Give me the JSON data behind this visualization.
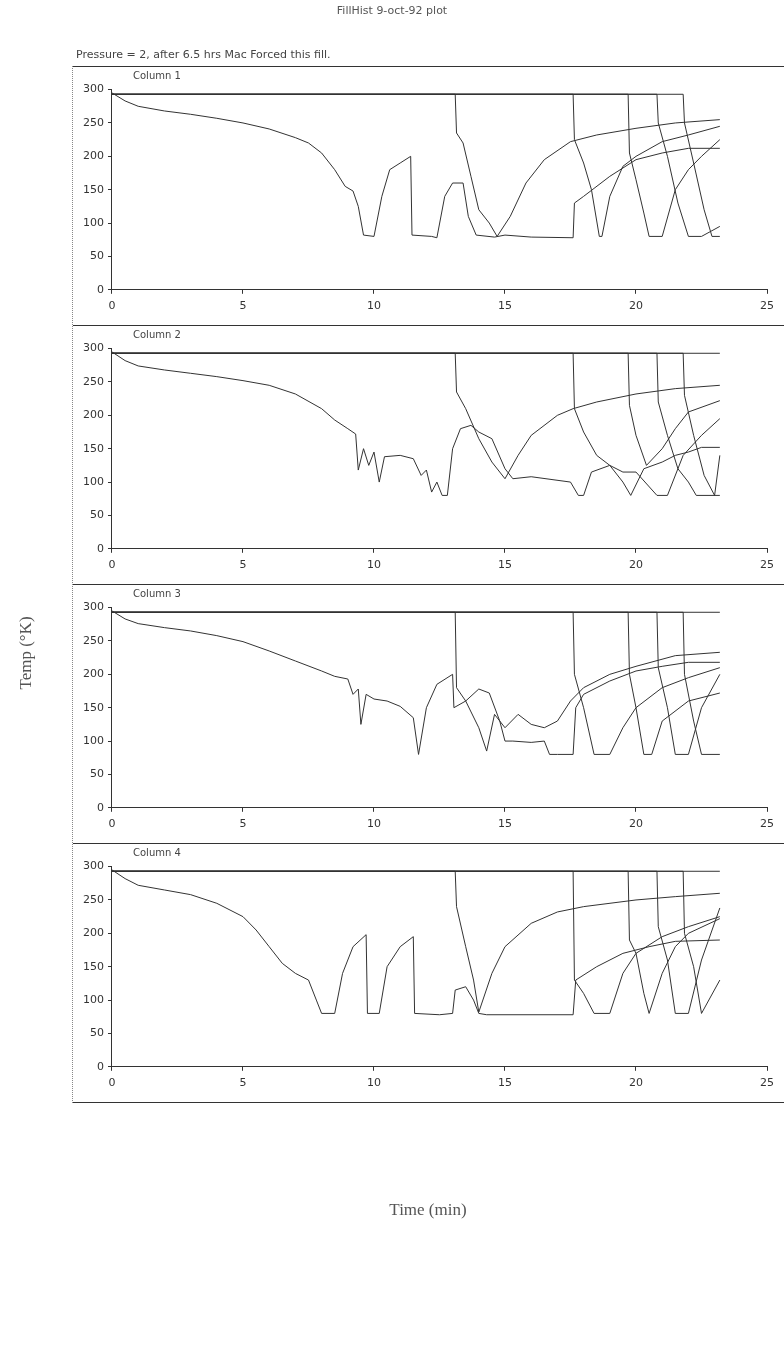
{
  "chart_data": [
    {
      "type": "line",
      "title": "Column 1",
      "annotations": [
        "FillHist 9-oct-92 plot",
        "Pressure = 2, after 6.5 hrs Mac Forced this fill."
      ],
      "xlim": [
        0,
        25
      ],
      "xticks": [
        0,
        5,
        10,
        15,
        20,
        25
      ],
      "ylim": [
        0,
        300
      ],
      "yticks": [
        0,
        50,
        100,
        150,
        200,
        250,
        300
      ],
      "grid": false,
      "legend": false,
      "marker": "none",
      "line_style": "solid",
      "series": [
        {
          "color": "#333333",
          "x": [
            0,
            0.5,
            1,
            2,
            3,
            4,
            5,
            6,
            7,
            7.5,
            8,
            8.5,
            8.9,
            9.2,
            9.4,
            9.6,
            10,
            10.3,
            10.6,
            11,
            11.4,
            11.45,
            12.2,
            12.4,
            12.7,
            13,
            13.4,
            13.6,
            13.9,
            14.6,
            15,
            16,
            17.6,
            17.65,
            18,
            19,
            20,
            21,
            22,
            23.2
          ],
          "values": [
            295,
            283,
            275,
            268,
            263,
            257,
            250,
            241,
            228,
            220,
            205,
            180,
            155,
            148,
            125,
            82,
            80,
            140,
            180,
            190,
            200,
            82,
            80,
            78,
            140,
            160,
            160,
            110,
            82,
            79,
            82,
            79,
            78,
            130,
            140,
            170,
            195,
            205,
            212,
            212
          ]
        },
        {
          "color": "#333333",
          "x": [
            0,
            13.1,
            13.15,
            13.4,
            13.7,
            14,
            14.4,
            14.7,
            15.2,
            15.8,
            16.5,
            17.5,
            18.5,
            20,
            21.5,
            23.2
          ],
          "values": [
            293,
            293,
            235,
            220,
            170,
            120,
            100,
            80,
            110,
            160,
            195,
            222,
            232,
            242,
            250,
            255
          ]
        },
        {
          "color": "#333333",
          "x": [
            0,
            17.6,
            17.65,
            18,
            18.3,
            18.6,
            18.7,
            19,
            19.5,
            20,
            21,
            22,
            23.2
          ],
          "values": [
            293,
            293,
            225,
            190,
            150,
            80,
            80,
            140,
            185,
            200,
            222,
            232,
            245
          ]
        },
        {
          "color": "#333333",
          "x": [
            0,
            19.7,
            19.75,
            20,
            20.3,
            20.5,
            21,
            21.5,
            22,
            22.5,
            23.2
          ],
          "values": [
            293,
            293,
            205,
            165,
            115,
            80,
            80,
            150,
            180,
            200,
            225
          ]
        },
        {
          "color": "#333333",
          "x": [
            0,
            20.8,
            20.85,
            21.2,
            21.6,
            22,
            22.5,
            23.2
          ],
          "values": [
            293,
            293,
            250,
            200,
            130,
            80,
            80,
            95
          ]
        },
        {
          "color": "#333333",
          "x": [
            0,
            21.8,
            21.85,
            22.2,
            22.6,
            22.9,
            23.2
          ],
          "values": [
            293,
            293,
            250,
            190,
            120,
            80,
            80
          ]
        }
      ]
    },
    {
      "type": "line",
      "title": "Column 2",
      "xlim": [
        0,
        25
      ],
      "xticks": [
        0,
        5,
        10,
        15,
        20,
        25
      ],
      "ylim": [
        0,
        300
      ],
      "yticks": [
        0,
        50,
        100,
        150,
        200,
        250,
        300
      ],
      "grid": false,
      "legend": false,
      "marker": "none",
      "line_style": "solid",
      "series": [
        {
          "color": "#333333",
          "x": [
            0,
            0.5,
            1,
            2,
            3,
            4,
            5,
            6,
            7,
            8,
            8.5,
            9,
            9.3,
            9.4,
            9.6,
            9.8,
            10,
            10.2,
            10.4,
            11,
            11.5,
            11.8,
            12,
            12.2,
            12.4,
            12.6,
            12.8,
            13,
            13.3,
            13.7,
            14,
            14.5,
            15,
            15.3,
            16,
            17.5,
            17.8,
            18,
            18.3,
            19,
            19.5,
            19.8,
            20.3,
            21,
            21.5,
            22,
            22.5,
            23.2
          ],
          "values": [
            295,
            282,
            274,
            268,
            263,
            258,
            252,
            245,
            232,
            210,
            193,
            180,
            172,
            118,
            150,
            125,
            145,
            100,
            138,
            140,
            135,
            110,
            118,
            85,
            100,
            80,
            80,
            150,
            180,
            185,
            175,
            165,
            120,
            105,
            108,
            100,
            80,
            80,
            115,
            125,
            100,
            80,
            120,
            130,
            140,
            145,
            152,
            152
          ]
        },
        {
          "color": "#333333",
          "x": [
            0,
            13.1,
            13.15,
            13.5,
            14,
            14.5,
            15,
            15.5,
            16,
            17,
            17.6,
            18.5,
            20,
            21.5,
            23.2
          ],
          "values": [
            293,
            293,
            235,
            210,
            165,
            130,
            105,
            140,
            170,
            200,
            210,
            220,
            232,
            240,
            245
          ]
        },
        {
          "color": "#333333",
          "x": [
            0,
            17.6,
            17.65,
            18,
            18.5,
            19,
            19.5,
            20,
            20.8,
            21.2,
            21.8,
            22.5,
            23.2
          ],
          "values": [
            293,
            293,
            210,
            175,
            140,
            125,
            115,
            115,
            80,
            80,
            140,
            170,
            195
          ]
        },
        {
          "color": "#333333",
          "x": [
            0,
            19.7,
            19.75,
            20,
            20.4,
            21,
            21.5,
            22,
            23.2
          ],
          "values": [
            293,
            293,
            215,
            170,
            125,
            150,
            180,
            205,
            222
          ]
        },
        {
          "color": "#333333",
          "x": [
            0,
            20.8,
            20.85,
            21.2,
            21.6,
            22,
            22.3,
            23.2
          ],
          "values": [
            293,
            293,
            220,
            170,
            120,
            100,
            80,
            80
          ]
        },
        {
          "color": "#333333",
          "x": [
            0,
            21.8,
            21.85,
            22.2,
            22.6,
            23,
            23.2
          ],
          "values": [
            293,
            293,
            230,
            170,
            110,
            80,
            140
          ]
        },
        {
          "color": "#333333",
          "x": [
            0,
            23.2
          ],
          "values": [
            293,
            293
          ]
        }
      ]
    },
    {
      "type": "line",
      "title": "Column 3",
      "ylabel": "Temp (°K)",
      "xlim": [
        0,
        25
      ],
      "xticks": [
        0,
        5,
        10,
        15,
        20,
        25
      ],
      "ylim": [
        0,
        300
      ],
      "yticks": [
        0,
        50,
        100,
        150,
        200,
        250,
        300
      ],
      "grid": false,
      "legend": false,
      "marker": "none",
      "line_style": "solid",
      "series": [
        {
          "color": "#333333",
          "x": [
            0,
            0.5,
            1,
            2,
            3,
            4,
            5,
            6,
            7,
            8,
            8.5,
            9,
            9.2,
            9.4,
            9.5,
            9.7,
            10,
            10.5,
            11,
            11.5,
            11.7,
            12,
            12.4,
            13,
            13.05,
            13.5,
            14,
            14.4,
            14.8,
            15,
            15.3,
            16,
            16.5,
            16.7,
            17,
            17.6,
            17.7,
            18,
            19,
            20,
            21,
            22,
            23.2
          ],
          "values": [
            295,
            283,
            276,
            270,
            265,
            258,
            249,
            235,
            220,
            205,
            197,
            193,
            170,
            178,
            125,
            170,
            163,
            160,
            152,
            135,
            80,
            150,
            185,
            200,
            150,
            160,
            178,
            172,
            130,
            100,
            100,
            98,
            100,
            80,
            80,
            80,
            150,
            170,
            190,
            205,
            212,
            218,
            218
          ]
        },
        {
          "color": "#333333",
          "x": [
            0,
            13.1,
            13.15,
            13.5,
            14,
            14.3,
            14.6,
            15,
            15.5,
            16,
            16.5,
            17,
            17.5,
            18,
            19,
            20,
            21.5,
            23.2
          ],
          "values": [
            293,
            293,
            180,
            160,
            120,
            85,
            140,
            120,
            140,
            125,
            120,
            130,
            160,
            180,
            200,
            212,
            228,
            233
          ]
        },
        {
          "color": "#333333",
          "x": [
            0,
            17.6,
            17.65,
            18,
            18.4,
            19,
            19.5,
            20,
            21,
            22,
            23.2
          ],
          "values": [
            293,
            293,
            200,
            150,
            80,
            80,
            120,
            150,
            180,
            195,
            210
          ]
        },
        {
          "color": "#333333",
          "x": [
            0,
            19.7,
            19.75,
            20,
            20.3,
            20.6,
            21,
            22,
            23.2
          ],
          "values": [
            293,
            293,
            200,
            150,
            80,
            80,
            130,
            160,
            172
          ]
        },
        {
          "color": "#333333",
          "x": [
            0,
            20.8,
            20.85,
            21.2,
            21.5,
            22,
            22.5,
            23.2
          ],
          "values": [
            293,
            293,
            210,
            150,
            80,
            80,
            150,
            200
          ]
        },
        {
          "color": "#333333",
          "x": [
            0,
            21.8,
            21.85,
            22.2,
            22.5,
            23.2
          ],
          "values": [
            293,
            293,
            200,
            130,
            80,
            80
          ]
        },
        {
          "color": "#333333",
          "x": [
            0,
            23.2
          ],
          "values": [
            293,
            293
          ]
        }
      ]
    },
    {
      "type": "line",
      "title": "Column 4",
      "xlabel": "Time (min)",
      "xlim": [
        0,
        25
      ],
      "xticks": [
        0,
        5,
        10,
        15,
        20,
        25
      ],
      "ylim": [
        0,
        300
      ],
      "yticks": [
        0,
        50,
        100,
        150,
        200,
        250,
        300
      ],
      "grid": false,
      "legend": false,
      "marker": "none",
      "line_style": "solid",
      "series": [
        {
          "color": "#333333",
          "x": [
            0,
            0.5,
            1,
            2,
            3,
            4,
            5,
            5.5,
            6,
            6.5,
            7,
            7.5,
            7.8,
            8,
            8.5,
            8.8,
            9.2,
            9.7,
            9.75,
            10.2,
            10.5,
            11,
            11.5,
            11.55,
            12.5,
            13,
            13.1,
            13.5,
            13.8,
            14,
            14.3,
            17.6,
            17.7,
            18.5,
            19.5,
            20.5,
            21.5,
            23.2
          ],
          "values": [
            295,
            282,
            272,
            265,
            258,
            245,
            225,
            205,
            180,
            155,
            140,
            130,
            100,
            80,
            80,
            140,
            180,
            198,
            80,
            80,
            150,
            180,
            195,
            80,
            78,
            80,
            115,
            120,
            100,
            80,
            78,
            78,
            130,
            150,
            170,
            180,
            188,
            190
          ]
        },
        {
          "color": "#333333",
          "x": [
            0,
            13.1,
            13.15,
            13.5,
            13.8,
            14,
            14.5,
            15,
            16,
            17,
            18,
            20,
            21.5,
            23.2
          ],
          "values": [
            293,
            293,
            240,
            180,
            130,
            82,
            140,
            180,
            215,
            232,
            240,
            250,
            255,
            260
          ]
        },
        {
          "color": "#333333",
          "x": [
            0,
            17.6,
            17.65,
            18,
            18.4,
            19,
            19.5,
            20,
            21,
            22,
            23.2
          ],
          "values": [
            293,
            293,
            130,
            110,
            80,
            80,
            140,
            170,
            195,
            210,
            225
          ]
        },
        {
          "color": "#333333",
          "x": [
            0,
            19.7,
            19.75,
            20,
            20.3,
            20.5,
            21,
            21.5,
            22,
            23.2
          ],
          "values": [
            293,
            293,
            190,
            170,
            110,
            80,
            140,
            180,
            200,
            222
          ]
        },
        {
          "color": "#333333",
          "x": [
            0,
            20.8,
            20.85,
            21.2,
            21.5,
            22,
            22.5,
            23.2
          ],
          "values": [
            293,
            293,
            210,
            160,
            80,
            80,
            160,
            238
          ]
        },
        {
          "color": "#333333",
          "x": [
            0,
            21.8,
            21.85,
            22.2,
            22.5,
            23.2
          ],
          "values": [
            293,
            293,
            200,
            150,
            80,
            130
          ]
        },
        {
          "color": "#333333",
          "x": [
            0,
            23.2
          ],
          "values": [
            293,
            293
          ]
        }
      ]
    }
  ]
}
